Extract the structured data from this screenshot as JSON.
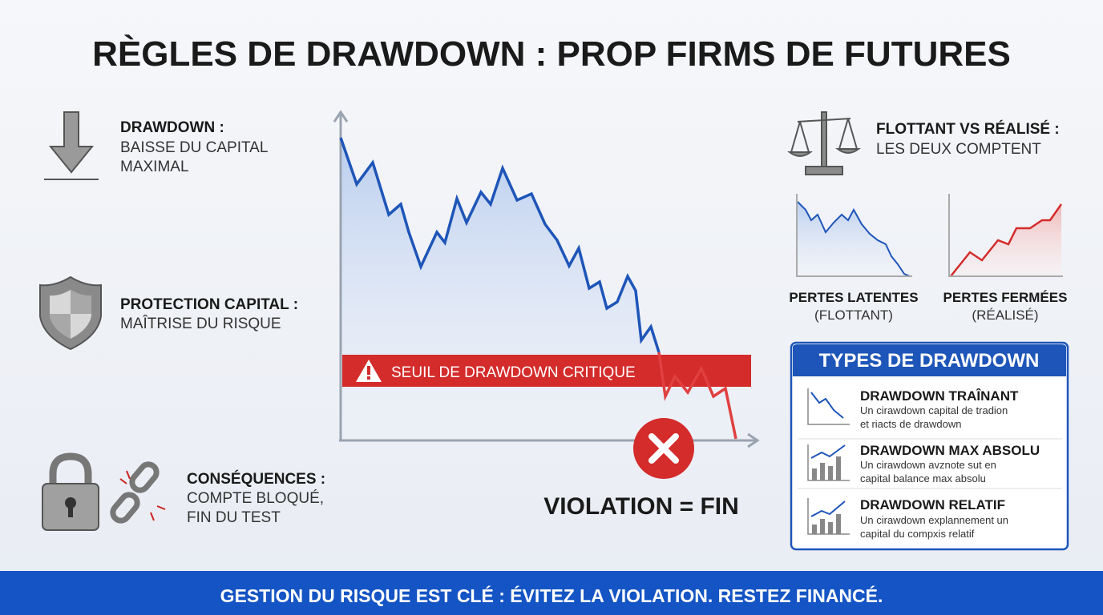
{
  "header": {
    "title": "RÈGLES DE DRAWDOWN : PROP FIRMS DE FUTURES"
  },
  "left_items": [
    {
      "heading": "DRAWDOWN :",
      "lines": [
        "BAISSE DU CAPITAL",
        "MAXIMAL"
      ]
    },
    {
      "heading": "PROTECTION CAPITAL :",
      "lines": [
        "MAÎTRISE DU RISQUE"
      ]
    },
    {
      "heading": "CONSÉQUENCES :",
      "lines": [
        "COMPTE BLOQUÉ,",
        "FIN DU TEST"
      ]
    }
  ],
  "chart": {
    "threshold_label": "SEUIL DE DRAWDOWN CRITIQUE",
    "result": "VIOLATION = FIN"
  },
  "right": {
    "heading": "FLOTTANT VS RÉALISÉ :",
    "subheading": "LES DEUX COMPTENT",
    "panels": [
      {
        "label": "PERTES LATENTES",
        "sublabel": "(FLOTTANT)"
      },
      {
        "label": "PERTES FERMÉES",
        "sublabel": "(RÉALISÉ)"
      }
    ]
  },
  "types_box": {
    "title": "TYPES DE DRAWDOWN",
    "items": [
      {
        "heading": "DRAWDOWN TRAÎNANT",
        "lines": [
          "Un cirawdown capital de tradion",
          "et riacts de drawdown"
        ]
      },
      {
        "heading": "DRAWDOWN MAX ABSOLU",
        "lines": [
          "Un cirawdown avznote sut en",
          "capital balance max absolu"
        ]
      },
      {
        "heading": "DRAWDOWN RELATIF",
        "lines": [
          "Un cirawdown explannement un",
          "capital du compxis relatif"
        ]
      }
    ]
  },
  "footer": {
    "text": "GESTION DU RISQUE EST CLÉ : ÉVITEZ LA VIOLATION. RESTEZ FINANCÉ."
  }
}
